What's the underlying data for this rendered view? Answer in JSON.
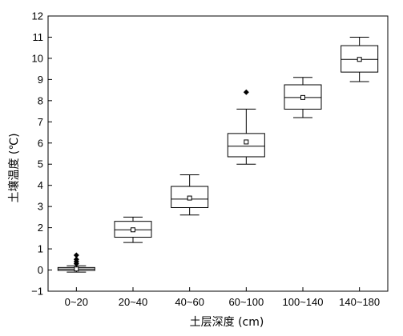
{
  "chart_data": {
    "type": "box",
    "xlabel": "土层深度 (cm)",
    "ylabel": "土壤温度 (℃)",
    "ylim": [
      -1,
      12
    ],
    "yticks": [
      -1,
      0,
      1,
      2,
      3,
      4,
      5,
      6,
      7,
      8,
      9,
      10,
      11,
      12
    ],
    "grid": false,
    "categories": [
      "0~20",
      "20~40",
      "40~60",
      "60~100",
      "100~140",
      "140~180"
    ],
    "boxes": [
      {
        "category": "0~20",
        "whisker_low": -0.1,
        "q1": -0.02,
        "median": 0.05,
        "q3": 0.12,
        "whisker_high": 0.2,
        "mean": 0.05,
        "outliers": [
          0.3,
          0.4,
          0.5,
          0.7
        ]
      },
      {
        "category": "20~40",
        "whisker_low": 1.3,
        "q1": 1.55,
        "median": 1.9,
        "q3": 2.3,
        "whisker_high": 2.5,
        "mean": 1.9,
        "outliers": []
      },
      {
        "category": "40~60",
        "whisker_low": 2.6,
        "q1": 2.95,
        "median": 3.35,
        "q3": 3.95,
        "whisker_high": 4.5,
        "mean": 3.4,
        "outliers": []
      },
      {
        "category": "60~100",
        "whisker_low": 5.0,
        "q1": 5.35,
        "median": 5.85,
        "q3": 6.45,
        "whisker_high": 7.6,
        "mean": 6.05,
        "outliers": [
          8.4
        ]
      },
      {
        "category": "100~140",
        "whisker_low": 7.2,
        "q1": 7.6,
        "median": 8.15,
        "q3": 8.75,
        "whisker_high": 9.1,
        "mean": 8.15,
        "outliers": []
      },
      {
        "category": "140~180",
        "whisker_low": 8.9,
        "q1": 9.35,
        "median": 9.95,
        "q3": 10.6,
        "whisker_high": 11.0,
        "mean": 9.95,
        "outliers": []
      }
    ],
    "colors": {
      "line": "#000000",
      "background": "#ffffff"
    }
  }
}
